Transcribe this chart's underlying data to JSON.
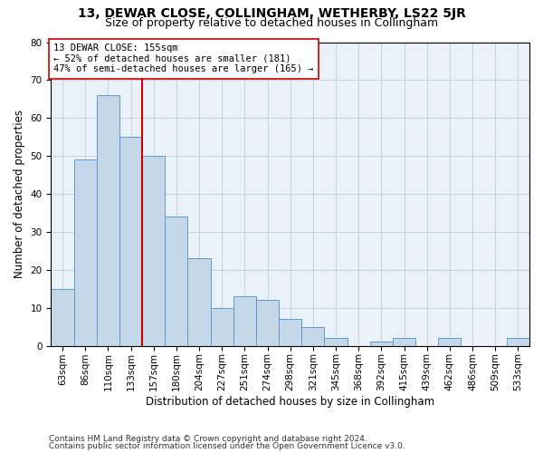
{
  "title": "13, DEWAR CLOSE, COLLINGHAM, WETHERBY, LS22 5JR",
  "subtitle": "Size of property relative to detached houses in Collingham",
  "xlabel": "Distribution of detached houses by size in Collingham",
  "ylabel": "Number of detached properties",
  "categories": [
    "63sqm",
    "86sqm",
    "110sqm",
    "133sqm",
    "157sqm",
    "180sqm",
    "204sqm",
    "227sqm",
    "251sqm",
    "274sqm",
    "298sqm",
    "321sqm",
    "345sqm",
    "368sqm",
    "392sqm",
    "415sqm",
    "439sqm",
    "462sqm",
    "486sqm",
    "509sqm",
    "533sqm"
  ],
  "values": [
    15,
    49,
    66,
    55,
    50,
    34,
    23,
    10,
    13,
    12,
    7,
    5,
    2,
    0,
    1,
    2,
    0,
    2,
    0,
    0,
    2
  ],
  "bar_color": "#c5d8ea",
  "bar_edgecolor": "#5b9bd5",
  "vline_index": 3.5,
  "vline_color": "#cc0000",
  "annotation_line1": "13 DEWAR CLOSE: 155sqm",
  "annotation_line2": "← 52% of detached houses are smaller (181)",
  "annotation_line3": "47% of semi-detached houses are larger (165) →",
  "annotation_box_color": "#ffffff",
  "annotation_box_edgecolor": "#cc0000",
  "ylim": [
    0,
    80
  ],
  "yticks": [
    0,
    10,
    20,
    30,
    40,
    50,
    60,
    70,
    80
  ],
  "grid_color": "#c0ccda",
  "background_color": "#eaf1f8",
  "footer_line1": "Contains HM Land Registry data © Crown copyright and database right 2024.",
  "footer_line2": "Contains public sector information licensed under the Open Government Licence v3.0.",
  "title_fontsize": 10,
  "subtitle_fontsize": 9,
  "axis_label_fontsize": 8.5,
  "tick_fontsize": 7.5,
  "annotation_fontsize": 7.5,
  "footer_fontsize": 6.5
}
